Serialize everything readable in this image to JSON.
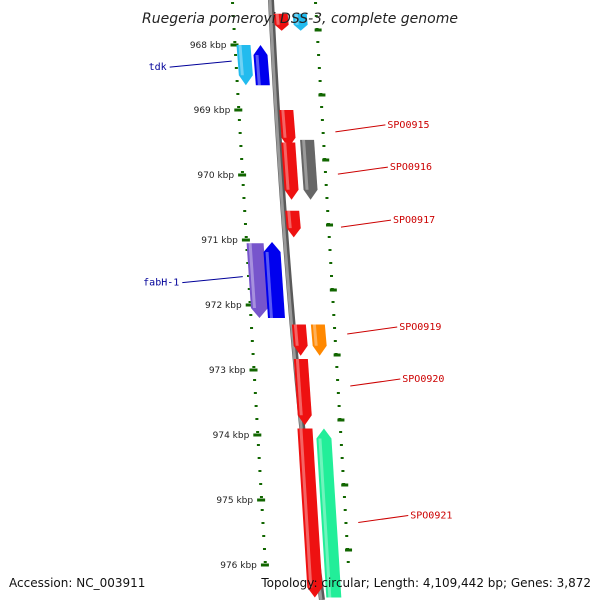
{
  "title": "Ruegeria pomeroyi DSS-3, complete genome",
  "footer": {
    "accession": "Accession: NC_003911",
    "summary": "Topology: circular; Length: 4,109,442 bp; Genes: 3,872"
  },
  "ticks": [
    {
      "kbp": 968,
      "label": "968 kbp"
    },
    {
      "kbp": 969,
      "label": "969 kbp"
    },
    {
      "kbp": 970,
      "label": "970 kbp"
    },
    {
      "kbp": 971,
      "label": "971 kbp"
    },
    {
      "kbp": 972,
      "label": "972 kbp"
    },
    {
      "kbp": 973,
      "label": "973 kbp"
    },
    {
      "kbp": 974,
      "label": "974 kbp"
    },
    {
      "kbp": 975,
      "label": "975 kbp"
    },
    {
      "kbp": 976,
      "label": "976 kbp"
    }
  ],
  "colors": {
    "red_gene": "#ee1111",
    "gray_gene": "#666666",
    "orange_gene": "#ff8800",
    "teal_gene": "#22ee99",
    "blue_gene": "#0000ee",
    "lightblue_gene": "#22bbee",
    "purple_gene": "#7755cc",
    "label_red": "#cc0000",
    "label_blue": "#000099",
    "tick_green": "#116600",
    "backbone": "#888888"
  },
  "genes": [
    {
      "label": "",
      "strand": "-",
      "side": "right",
      "start": 967.52,
      "end": 967.78,
      "color": "red_gene"
    },
    {
      "label": "",
      "strand": "-",
      "side": "right",
      "start": 967.52,
      "end": 967.78,
      "color": "lightblue_gene"
    },
    {
      "label": "tdk",
      "strand": "-",
      "side": "left",
      "start": 968.0,
      "end": 968.62,
      "color": "lightblue_gene"
    },
    {
      "label": "",
      "strand": "+",
      "side": "left",
      "start": 968.0,
      "end": 968.62,
      "color": "blue_gene"
    },
    {
      "label": "SPO0915",
      "strand": "-",
      "side": "right",
      "start": 969.0,
      "end": 969.58,
      "color": "red_gene"
    },
    {
      "label": "SPO0916",
      "strand": "-",
      "side": "right",
      "start": 969.5,
      "end": 970.38,
      "color": "red_gene"
    },
    {
      "label": "",
      "strand": "-",
      "side": "right",
      "start": 969.46,
      "end": 970.38,
      "color": "gray_gene"
    },
    {
      "label": "SPO0917",
      "strand": "-",
      "side": "right",
      "start": 970.55,
      "end": 970.96,
      "color": "red_gene"
    },
    {
      "label": "fabH-1",
      "strand": "-",
      "side": "left",
      "start": 971.05,
      "end": 972.2,
      "color": "purple_gene"
    },
    {
      "label": "",
      "strand": "+",
      "side": "left",
      "start": 971.03,
      "end": 972.2,
      "color": "blue_gene"
    },
    {
      "label": "SPO0919",
      "strand": "-",
      "side": "right",
      "start": 972.3,
      "end": 972.78,
      "color": "red_gene"
    },
    {
      "label": "",
      "strand": "-",
      "side": "right",
      "start": 972.3,
      "end": 972.78,
      "color": "orange_gene"
    },
    {
      "label": "SPO0920",
      "strand": "-",
      "side": "right",
      "start": 972.83,
      "end": 973.85,
      "color": "red_gene"
    },
    {
      "label": "SPO0921",
      "strand": "-",
      "side": "right",
      "start": 973.9,
      "end": 976.5,
      "color": "red_gene"
    },
    {
      "label": "",
      "strand": "+",
      "side": "right",
      "start": 973.9,
      "end": 976.5,
      "color": "teal_gene"
    }
  ]
}
